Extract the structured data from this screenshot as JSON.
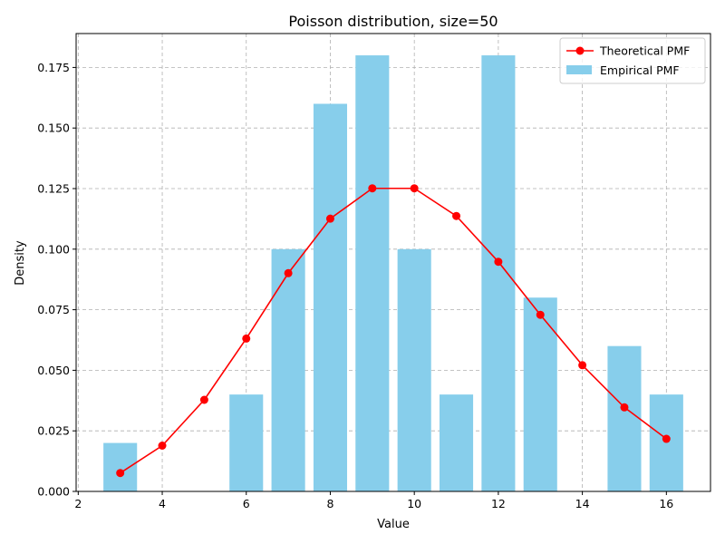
{
  "chart_data": {
    "type": "bar",
    "title": "Poisson distribution, size=50",
    "xlabel": "Value",
    "ylabel": "Density",
    "xlim": [
      1.95,
      17.05
    ],
    "ylim": [
      0,
      0.189
    ],
    "xticks": [
      2,
      4,
      6,
      8,
      10,
      12,
      14,
      16
    ],
    "yticks": [
      0.0,
      0.025,
      0.05,
      0.075,
      0.1,
      0.125,
      0.15,
      0.175
    ],
    "ytick_labels": [
      "0.000",
      "0.025",
      "0.050",
      "0.075",
      "0.100",
      "0.125",
      "0.150",
      "0.175"
    ],
    "grid": true,
    "legend_position": "top-right",
    "series": [
      {
        "name": "Empirical PMF",
        "type": "bar",
        "color": "#87ceeb",
        "x": [
          3,
          6,
          7,
          8,
          9,
          10,
          11,
          12,
          13,
          15,
          16
        ],
        "values": [
          0.02,
          0.04,
          0.1,
          0.16,
          0.18,
          0.1,
          0.04,
          0.18,
          0.08,
          0.06,
          0.04
        ]
      },
      {
        "name": "Theoretical PMF",
        "type": "line",
        "color": "#ff0000",
        "x": [
          3,
          4,
          5,
          6,
          7,
          8,
          9,
          10,
          11,
          12,
          13,
          14,
          15,
          16
        ],
        "values": [
          0.0076,
          0.0189,
          0.0378,
          0.0631,
          0.0901,
          0.1126,
          0.1251,
          0.1251,
          0.1137,
          0.0948,
          0.0729,
          0.0521,
          0.0347,
          0.0217
        ]
      }
    ]
  }
}
